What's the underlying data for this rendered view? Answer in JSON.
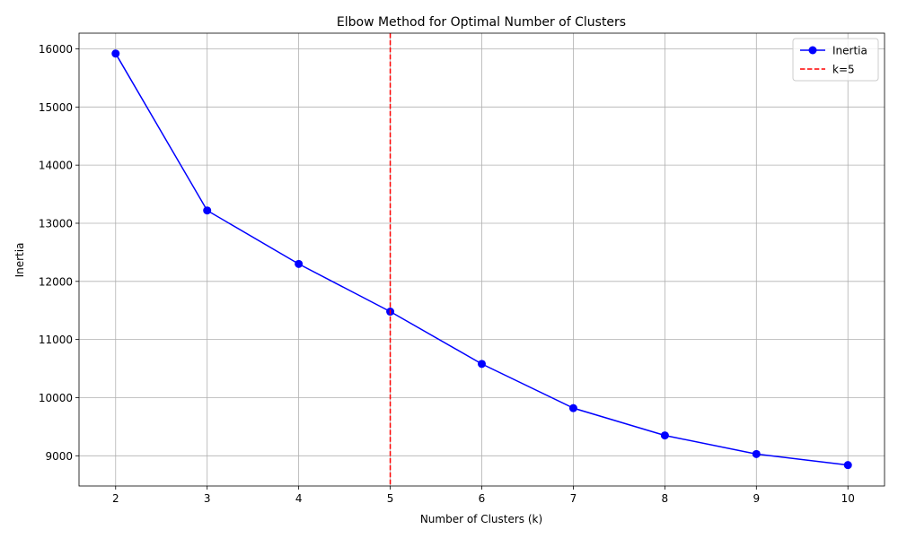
{
  "chart_data": {
    "type": "line",
    "title": "Elbow Method for Optimal Number of Clusters",
    "xlabel": "Number of Clusters (k)",
    "ylabel": "Inertia",
    "x": [
      2,
      3,
      4,
      5,
      6,
      7,
      8,
      9,
      10
    ],
    "xlim": [
      1.6,
      10.4
    ],
    "ylim": [
      8480,
      16270
    ],
    "xticks": [
      2,
      3,
      4,
      5,
      6,
      7,
      8,
      9,
      10
    ],
    "yticks": [
      9000,
      10000,
      11000,
      12000,
      13000,
      14000,
      15000,
      16000
    ],
    "grid": true,
    "legend_position": "top-right",
    "series": [
      {
        "name": "Inertia",
        "values": [
          15920,
          13220,
          12300,
          11480,
          10580,
          9820,
          9350,
          9030,
          8840
        ],
        "color": "#0000ff",
        "marker": "circle",
        "linestyle": "solid"
      }
    ],
    "vlines": [
      {
        "x": 5,
        "name": "k=5",
        "color": "#ff0000",
        "linestyle": "dashed"
      }
    ]
  }
}
